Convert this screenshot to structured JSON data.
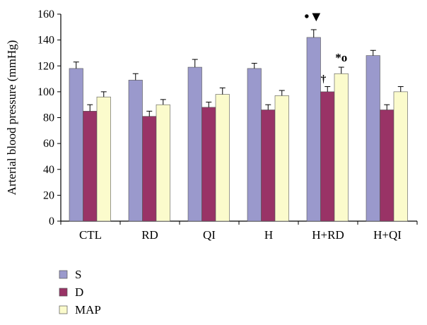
{
  "chart_data": {
    "type": "bar",
    "ylabel": "Arterial blood pressure (mmHg)",
    "xlabel": "",
    "ylim": [
      0,
      160
    ],
    "yticks": [
      0,
      20,
      40,
      60,
      80,
      100,
      120,
      140,
      160
    ],
    "grid": false,
    "legend_position": "bottom-left",
    "categories": [
      "CTL",
      "RD",
      "QI",
      "H",
      "H+RD",
      "H+QI"
    ],
    "series": [
      {
        "name": "S",
        "color": "#9a99cc",
        "values": [
          118,
          109,
          119,
          118,
          142,
          128
        ],
        "errors": [
          5,
          5,
          6,
          4,
          6,
          4
        ]
      },
      {
        "name": "D",
        "color": "#993366",
        "values": [
          85,
          81,
          88,
          86,
          100,
          86
        ],
        "errors": [
          5,
          4,
          4,
          4,
          4,
          4
        ]
      },
      {
        "name": "MAP",
        "color": "#fbfbcc",
        "values": [
          96,
          90,
          98,
          97,
          114,
          100
        ],
        "errors": [
          4,
          4,
          5,
          4,
          5,
          4
        ]
      }
    ],
    "annotations": [
      {
        "text": "•▼",
        "category": "H+RD",
        "series": "S"
      },
      {
        "text": "†",
        "category": "H+RD",
        "series": "D"
      },
      {
        "text": "*o",
        "category": "H+RD",
        "series": "MAP"
      }
    ]
  }
}
